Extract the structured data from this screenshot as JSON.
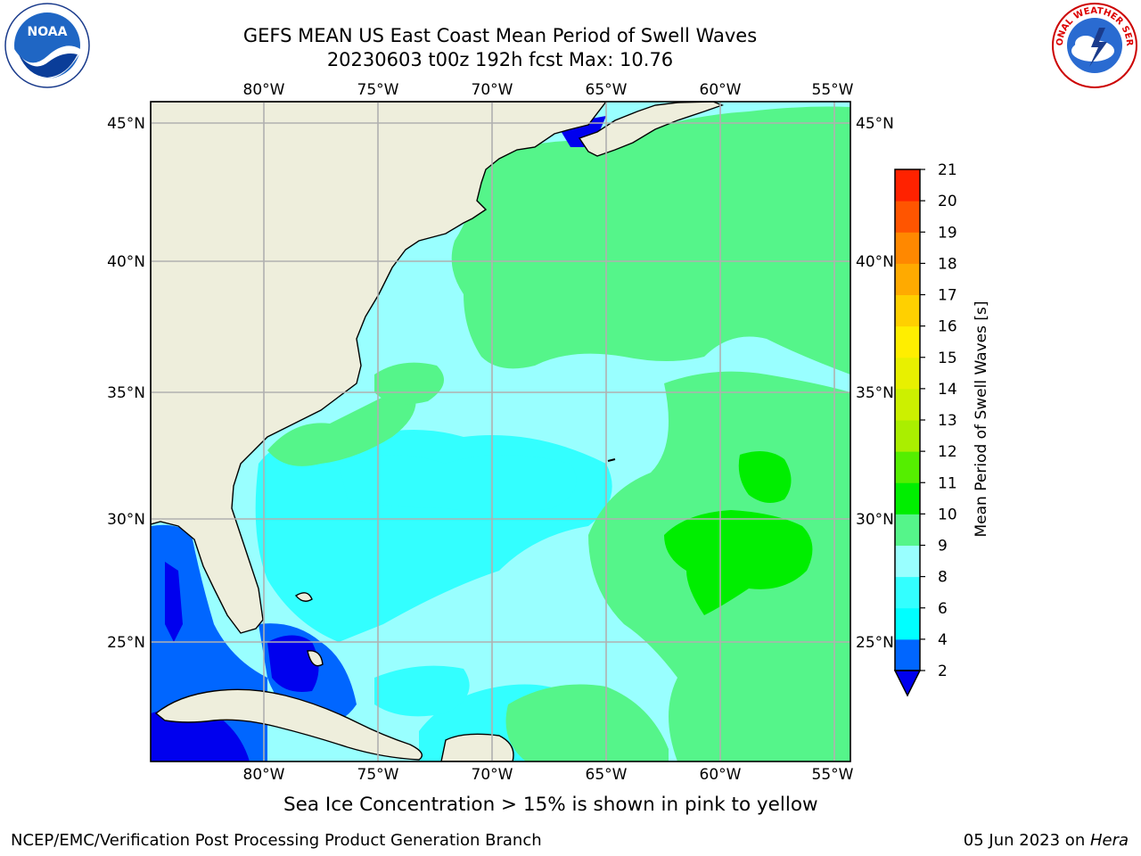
{
  "title": {
    "line1": "GEFS MEAN US East Coast Mean Period of Swell Waves",
    "line2": "20230603 t00z 192h fcst   Max: 10.76"
  },
  "logos": {
    "left": "noaa-logo",
    "right": "national-weather-service-logo",
    "left_text": "NOAA",
    "right_text": "NATIONAL WEATHER SERVICE"
  },
  "map": {
    "type": "filled-contour-map",
    "projection": "lat-lon",
    "lon_ticks": [
      "80°W",
      "75°W",
      "70°W",
      "65°W",
      "60°W",
      "55°W"
    ],
    "lat_ticks": [
      "45°N",
      "40°N",
      "35°N",
      "30°N",
      "25°N"
    ],
    "land_color": "#eeeedc",
    "grid": true
  },
  "colorbar": {
    "label": "Mean Period of Swell Waves [s]",
    "ticks": [
      "2",
      "4",
      "6",
      "8",
      "9",
      "10",
      "11",
      "12",
      "13",
      "14",
      "15",
      "16",
      "17",
      "18",
      "19",
      "20",
      "21"
    ],
    "colors": [
      "#0066ff",
      "#00ffff",
      "#33ffff",
      "#99ffff",
      "#55f58a",
      "#00ee00",
      "#55ee00",
      "#aaee00",
      "#ccf000",
      "#e8f000",
      "#ffee00",
      "#ffd000",
      "#ffaa00",
      "#ff8800",
      "#ff5500",
      "#ff2200",
      "#ff0000"
    ],
    "under_color": "#0000ee"
  },
  "caption": "Sea Ice Concentration > 15% is shown in pink to yellow",
  "footer": {
    "left": "NCEP/EMC/Verification Post Processing Product Generation Branch",
    "date": "05 Jun 2023 on ",
    "machine": "Hera"
  }
}
